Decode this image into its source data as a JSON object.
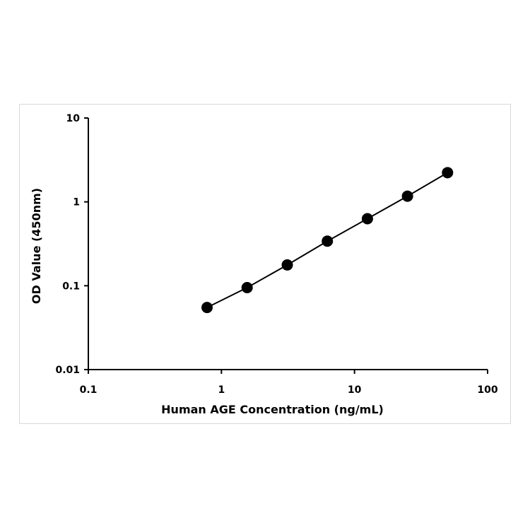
{
  "chart_data": {
    "type": "scatter",
    "title": "",
    "xlabel": "Human AGE Concentration (ng/mL)",
    "ylabel": "OD Value (450nm)",
    "x_scale": "log",
    "y_scale": "log",
    "xlim": [
      0.1,
      100
    ],
    "ylim": [
      0.01,
      10
    ],
    "x_ticks": [
      0.1,
      1,
      10,
      100
    ],
    "x_tick_labels": [
      "0.1",
      "1",
      "10",
      "100"
    ],
    "y_ticks": [
      0.01,
      0.1,
      1,
      10
    ],
    "y_tick_labels": [
      "0.01",
      "0.1",
      "1",
      "10"
    ],
    "grid": false,
    "legend": "none",
    "series": [
      {
        "x": [
          0.78,
          1.56,
          3.125,
          6.25,
          12.5,
          25,
          50
        ],
        "y": [
          0.055,
          0.095,
          0.177,
          0.34,
          0.63,
          1.17,
          2.23
        ],
        "marker": "circle",
        "line": true,
        "color": "#000000"
      }
    ]
  }
}
